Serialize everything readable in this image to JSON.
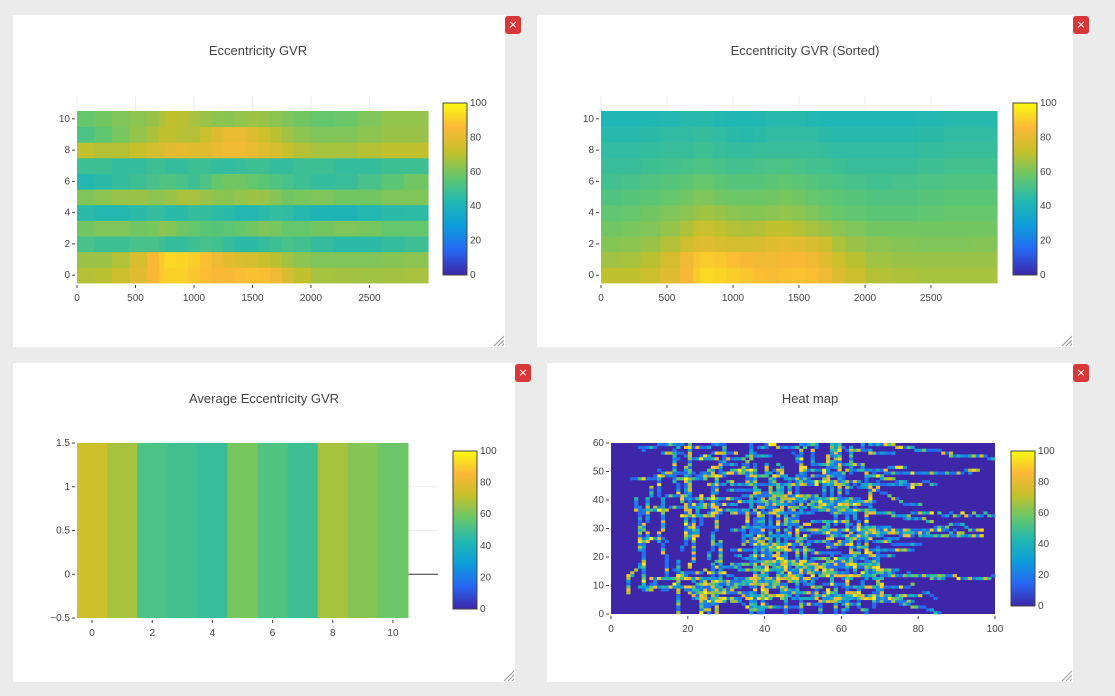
{
  "panels": [
    {
      "close_label": "×"
    },
    {
      "close_label": "×"
    },
    {
      "close_label": "×"
    },
    {
      "close_label": "×"
    }
  ],
  "colorscale": [
    "#3d26a8",
    "#2766f2",
    "#0d9ddb",
    "#21b8b2",
    "#65c76b",
    "#c4c02b",
    "#fbb837",
    "#f9fb0e"
  ],
  "chart_data": [
    {
      "type": "heatmap",
      "title": "Eccentricity GVR",
      "xlim": [
        0,
        3000
      ],
      "ylim": [
        -0.5,
        10.5
      ],
      "x_ticks": [
        "0",
        "500",
        "1000",
        "1500",
        "2000",
        "2500"
      ],
      "y_ticks": [
        "0",
        "2",
        "4",
        "6",
        "8",
        "10"
      ],
      "colorbar_ticks": [
        "0",
        "20",
        "40",
        "60",
        "80",
        "100"
      ],
      "zlim": [
        0,
        100
      ],
      "x": [
        0,
        150,
        300,
        450,
        600,
        700,
        750,
        850,
        950,
        1050,
        1150,
        1250,
        1350,
        1450,
        1550,
        1650,
        1750,
        1850,
        2000,
        2200,
        2400,
        2600,
        2800,
        3000
      ],
      "rows": [
        [
          70,
          68,
          72,
          75,
          82,
          88,
          90,
          92,
          90,
          88,
          86,
          85,
          86,
          87,
          88,
          86,
          80,
          74,
          68,
          66,
          67,
          65,
          68,
          66
        ],
        [
          64,
          66,
          65,
          72,
          82,
          88,
          92,
          93,
          91,
          90,
          85,
          80,
          78,
          76,
          74,
          72,
          68,
          64,
          62,
          60,
          62,
          60,
          64,
          62
        ],
        [
          52,
          50,
          48,
          50,
          52,
          50,
          48,
          46,
          48,
          50,
          52,
          48,
          46,
          44,
          46,
          48,
          50,
          52,
          48,
          46,
          44,
          46,
          48,
          50
        ],
        [
          58,
          60,
          62,
          60,
          58,
          62,
          64,
          60,
          58,
          56,
          54,
          55,
          56,
          58,
          60,
          62,
          58,
          56,
          58,
          60,
          62,
          58,
          56,
          58
        ],
        [
          46,
          44,
          42,
          44,
          46,
          48,
          45,
          44,
          46,
          48,
          46,
          45,
          44,
          42,
          44,
          46,
          47,
          45,
          42,
          40,
          42,
          44,
          46,
          45
        ],
        [
          60,
          62,
          64,
          66,
          64,
          62,
          64,
          66,
          68,
          66,
          64,
          62,
          63,
          65,
          66,
          64,
          60,
          58,
          62,
          60,
          58,
          60,
          62,
          60
        ],
        [
          42,
          44,
          46,
          48,
          50,
          52,
          54,
          52,
          50,
          48,
          56,
          58,
          60,
          58,
          56,
          54,
          52,
          50,
          48,
          46,
          50,
          52,
          58,
          60
        ],
        [
          48,
          50,
          48,
          46,
          48,
          50,
          48,
          46,
          48,
          50,
          48,
          46,
          47,
          48,
          50,
          48,
          46,
          48,
          50,
          48,
          46,
          48,
          50,
          48
        ],
        [
          72,
          70,
          68,
          70,
          74,
          76,
          78,
          80,
          80,
          78,
          80,
          82,
          84,
          82,
          80,
          78,
          74,
          70,
          68,
          66,
          68,
          70,
          72,
          70
        ],
        [
          50,
          54,
          58,
          62,
          66,
          70,
          72,
          70,
          68,
          70,
          76,
          80,
          82,
          80,
          76,
          72,
          68,
          64,
          62,
          60,
          62,
          64,
          66,
          64
        ],
        [
          56,
          58,
          60,
          62,
          64,
          66,
          70,
          72,
          68,
          66,
          64,
          62,
          63,
          65,
          66,
          64,
          62,
          60,
          58,
          56,
          60,
          62,
          66,
          62
        ]
      ]
    },
    {
      "type": "heatmap",
      "title": "Eccentricity GVR (Sorted)",
      "xlim": [
        0,
        3000
      ],
      "ylim": [
        -0.5,
        10.5
      ],
      "x_ticks": [
        "0",
        "500",
        "1000",
        "1500",
        "2000",
        "2500"
      ],
      "y_ticks": [
        "0",
        "2",
        "4",
        "6",
        "8",
        "10"
      ],
      "colorbar_ticks": [
        "0",
        "20",
        "40",
        "60",
        "80",
        "100"
      ],
      "zlim": [
        0,
        100
      ],
      "x": [
        0,
        150,
        300,
        450,
        600,
        700,
        750,
        850,
        950,
        1050,
        1150,
        1250,
        1350,
        1450,
        1550,
        1650,
        1750,
        1850,
        2000,
        2200,
        2400,
        2600,
        2800,
        3000
      ],
      "rows": [
        [
          72,
          70,
          72,
          75,
          82,
          88,
          92,
          93,
          91,
          90,
          88,
          86,
          87,
          88,
          88,
          86,
          80,
          76,
          70,
          68,
          68,
          66,
          68,
          66
        ],
        [
          66,
          66,
          68,
          72,
          80,
          86,
          90,
          90,
          88,
          86,
          84,
          82,
          84,
          86,
          85,
          82,
          76,
          72,
          68,
          64,
          66,
          64,
          66,
          64
        ],
        [
          62,
          62,
          64,
          66,
          72,
          76,
          80,
          78,
          76,
          74,
          76,
          78,
          80,
          80,
          78,
          76,
          70,
          66,
          64,
          62,
          62,
          60,
          62,
          62
        ],
        [
          58,
          60,
          60,
          62,
          66,
          70,
          74,
          72,
          70,
          68,
          68,
          70,
          72,
          70,
          68,
          66,
          64,
          62,
          60,
          58,
          60,
          58,
          60,
          58
        ],
        [
          56,
          56,
          58,
          60,
          62,
          64,
          66,
          66,
          64,
          62,
          62,
          62,
          64,
          64,
          62,
          60,
          58,
          56,
          56,
          54,
          56,
          56,
          58,
          56
        ],
        [
          52,
          54,
          54,
          56,
          58,
          60,
          62,
          60,
          58,
          58,
          58,
          58,
          60,
          60,
          58,
          56,
          56,
          54,
          54,
          52,
          54,
          54,
          56,
          54
        ],
        [
          50,
          50,
          52,
          54,
          54,
          56,
          58,
          56,
          54,
          54,
          54,
          54,
          56,
          56,
          54,
          54,
          52,
          52,
          50,
          50,
          52,
          52,
          54,
          52
        ],
        [
          48,
          48,
          48,
          50,
          50,
          52,
          52,
          52,
          50,
          50,
          50,
          52,
          52,
          52,
          50,
          50,
          50,
          48,
          48,
          48,
          48,
          50,
          50,
          50
        ],
        [
          46,
          46,
          46,
          48,
          48,
          48,
          50,
          48,
          48,
          46,
          48,
          48,
          48,
          48,
          48,
          48,
          46,
          46,
          46,
          46,
          46,
          48,
          48,
          48
        ],
        [
          44,
          44,
          44,
          46,
          46,
          46,
          48,
          46,
          46,
          44,
          44,
          46,
          46,
          46,
          46,
          46,
          44,
          44,
          44,
          44,
          44,
          46,
          46,
          46
        ],
        [
          42,
          42,
          42,
          42,
          44,
          44,
          44,
          44,
          42,
          42,
          42,
          44,
          44,
          44,
          44,
          42,
          42,
          42,
          42,
          42,
          42,
          44,
          44,
          44
        ]
      ]
    },
    {
      "type": "heatmap",
      "title": "Average Eccentricity GVR",
      "xlim": [
        -0.5,
        10.5
      ],
      "ylim": [
        -0.5,
        1.5
      ],
      "x_ticks": [
        "0",
        "2",
        "4",
        "6",
        "8",
        "10"
      ],
      "y_ticks": [
        "−0.5",
        "0",
        "0.5",
        "1",
        "1.5"
      ],
      "colorbar_ticks": [
        "0",
        "20",
        "40",
        "60",
        "80",
        "100"
      ],
      "zlim": [
        0,
        100
      ],
      "categories": [
        0,
        1,
        2,
        3,
        4,
        5,
        6,
        7,
        8,
        9,
        10
      ],
      "values": [
        74,
        67,
        52,
        50,
        48,
        60,
        53,
        49,
        67,
        62,
        58
      ]
    },
    {
      "type": "heatmap",
      "title": "Heat map",
      "xlim": [
        0,
        100
      ],
      "ylim": [
        0,
        60
      ],
      "x_ticks": [
        "0",
        "20",
        "40",
        "60",
        "80",
        "100"
      ],
      "y_ticks": [
        "0",
        "10",
        "20",
        "30",
        "40",
        "50",
        "60"
      ],
      "colorbar_ticks": [
        "0",
        "20",
        "40",
        "60",
        "80",
        "100"
      ],
      "zlim": [
        0,
        100
      ],
      "grid_size": [
        100,
        60
      ],
      "background_value": 0,
      "trajectory_value_range": [
        15,
        100
      ]
    }
  ]
}
